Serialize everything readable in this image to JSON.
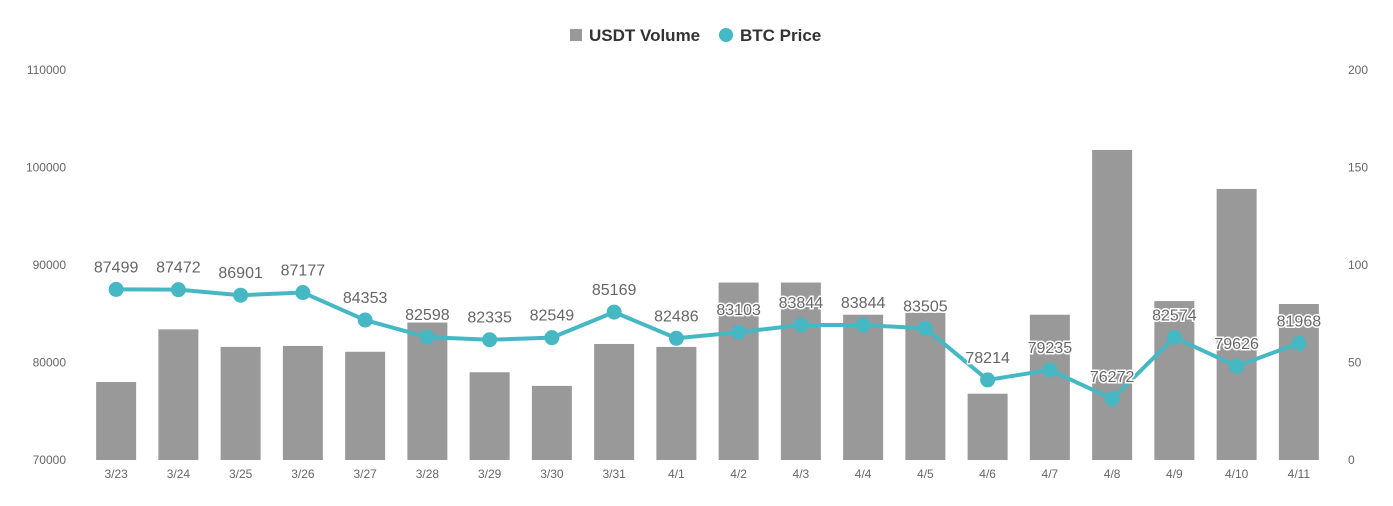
{
  "chart_data": {
    "type": "bar+line",
    "categories": [
      "3/23",
      "3/24",
      "3/25",
      "3/26",
      "3/27",
      "3/28",
      "3/29",
      "3/30",
      "3/31",
      "4/1",
      "4/2",
      "4/3",
      "4/4",
      "4/5",
      "4/6",
      "4/7",
      "4/8",
      "4/9",
      "4/10",
      "4/11"
    ],
    "series": [
      {
        "name": "USDT Volume",
        "type": "bar",
        "axis": "right",
        "color": "#999999",
        "values": [
          40,
          67,
          58,
          58.5,
          55.5,
          70.5,
          45,
          38,
          59.5,
          58,
          91,
          91,
          74.5,
          75.5,
          34,
          74.5,
          159,
          81.5,
          139,
          80
        ]
      },
      {
        "name": "BTC Price",
        "type": "line",
        "axis": "left",
        "color": "#45b8c4",
        "values": [
          87499,
          87472,
          86901,
          87177,
          84353,
          82598,
          82335,
          82549,
          85169,
          82486,
          83103,
          83844,
          83844,
          83505,
          78214,
          79235,
          76272,
          82574,
          79626,
          81968
        ],
        "labels": [
          "87499",
          "87472",
          "86901",
          "87177",
          "84353",
          "82598",
          "82335",
          "82549",
          "85169",
          "82486",
          "83103",
          "83844",
          "83844",
          "83505",
          "78214",
          "79235",
          "76272",
          "82574",
          "79626",
          "81968"
        ]
      }
    ],
    "y_left": {
      "min": 70000,
      "max": 110000,
      "ticks": [
        "70000",
        "80000",
        "90000",
        "100000",
        "110000"
      ]
    },
    "y_right": {
      "min": 0,
      "max": 200,
      "ticks": [
        "0",
        "50",
        "100",
        "150",
        "200"
      ]
    },
    "legend": {
      "position": "top-center",
      "items": [
        "USDT Volume",
        "BTC Price"
      ]
    },
    "grid": false
  }
}
